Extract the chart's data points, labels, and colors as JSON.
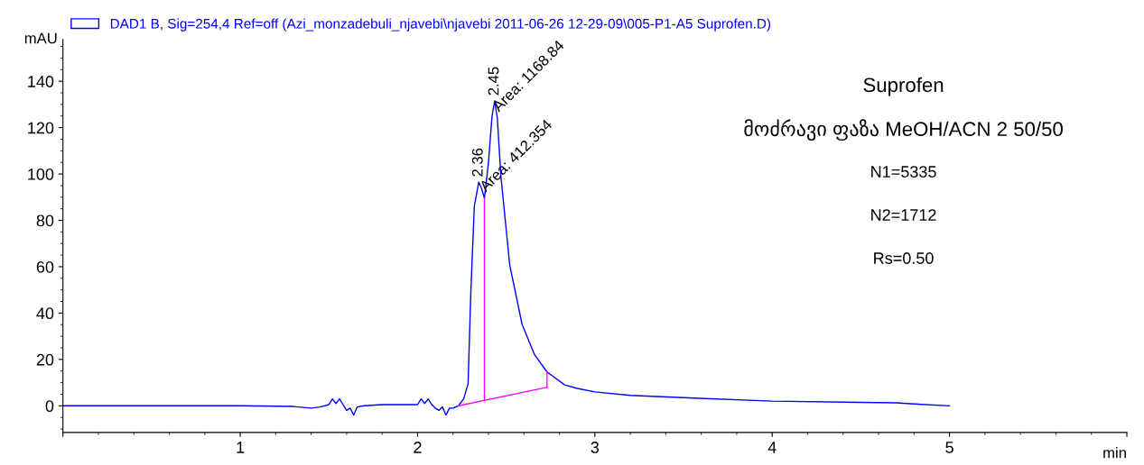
{
  "chart_data": {
    "type": "line",
    "xlabel": "min",
    "ylabel": "mAU",
    "xlim": [
      0,
      6
    ],
    "xticks": [
      {
        "value": 0,
        "label": null
      },
      1,
      2,
      3,
      4,
      5,
      {
        "value": 6,
        "label": null
      }
    ],
    "ylim": [
      -11.5,
      158
    ],
    "yticks": [
      0,
      20,
      40,
      60,
      80,
      100,
      120,
      140
    ],
    "grid": false,
    "legend": "top left",
    "marker": "none",
    "line_style": "solid",
    "series": [
      {
        "name": "DAD1 B, Sig=254,4 Ref=off (Azi_monzadebuli_njavebi\\njavebi 2011-06-26 12-29-09\\005-P1-A5 Suprofen.D)",
        "color": "#0000ff",
        "x": [
          0,
          0.5,
          1.0,
          1.3,
          1.4,
          1.45,
          1.5,
          1.52,
          1.54,
          1.56,
          1.58,
          1.6,
          1.62,
          1.64,
          1.66,
          1.7,
          1.8,
          1.9,
          2.0,
          2.02,
          2.04,
          2.06,
          2.08,
          2.1,
          2.12,
          2.14,
          2.16,
          2.18,
          2.2,
          2.23,
          2.26,
          2.285,
          2.3,
          2.32,
          2.345,
          2.36,
          2.377,
          2.4,
          2.42,
          2.435,
          2.45,
          2.47,
          2.52,
          2.59,
          2.66,
          2.73,
          2.83,
          2.9,
          3.0,
          3.2,
          3.5,
          4.0,
          4.5,
          4.7,
          4.8,
          5.0
        ],
        "values": [
          0,
          0,
          0,
          -0.3,
          -1,
          -0.5,
          0.5,
          3,
          1,
          3,
          0.5,
          -2,
          -1,
          -4,
          -0.5,
          0,
          0.5,
          0.5,
          0.5,
          3,
          1,
          3,
          0.5,
          -1,
          -2,
          -0.5,
          -4,
          -1,
          -1,
          0,
          3,
          9.5,
          48,
          86,
          96.5,
          94,
          89.5,
          105,
          125,
          131.6,
          124,
          99,
          60.6,
          35,
          22,
          14.6,
          9,
          7.5,
          6,
          4.5,
          3.5,
          2,
          1.5,
          1.3,
          0.8,
          0
        ]
      },
      {
        "color": "#ff00ff",
        "x": [
          2.23,
          2.73
        ],
        "values": [
          0,
          8
        ]
      },
      {
        "color": "#ff00ff",
        "x": [
          2.377,
          2.377
        ],
        "values": [
          2.4,
          89.5
        ]
      },
      {
        "color": "#ff00ff",
        "x": [
          2.73,
          2.73
        ],
        "values": [
          8,
          14.6
        ]
      }
    ],
    "annotations": [
      {
        "text": "2.36",
        "x": 2.345,
        "y": 96.5
      },
      {
        "text": "Area: 412.354",
        "x": 2.377,
        "y": 89.5
      },
      {
        "text": "2.45",
        "x": 2.435,
        "y": 131.6
      },
      {
        "text": "Area: 1168.84",
        "x": 2.45,
        "y": 124
      },
      "Suprofen",
      "მოძრავი ფაზა MeOH/ACN 2 50/50",
      "N1=5335",
      "N2=1712",
      "Rs=0.50"
    ]
  }
}
